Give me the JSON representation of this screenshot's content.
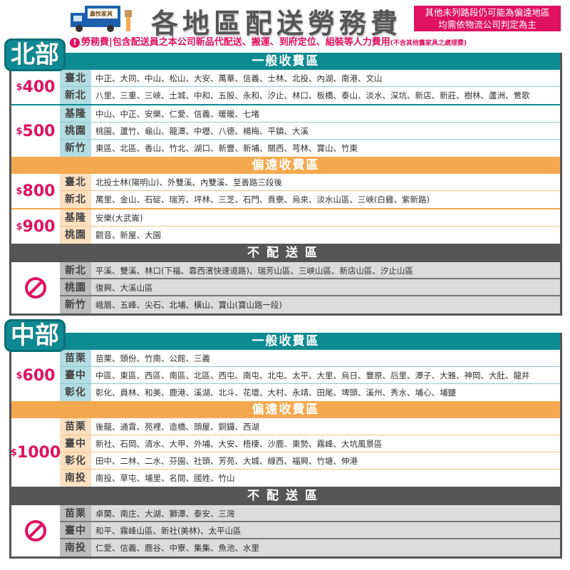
{
  "header": {
    "logo_text": "鑫悅家具",
    "title": "各地區配送勞務費",
    "note_line1": "其他未列路段仍可能為偏遠地區",
    "note_line2": "均需依物流公司判定為主",
    "subtitle": "勞務費|包含配送員之本公司新品代配送、搬運、到府定位、組裝等人力費用",
    "subtitle_small": "(不含其他舊家具之處理費)"
  },
  "colors": {
    "accent": "#e0115f",
    "teal": "#0e8a93",
    "orange": "#f5a94f",
    "dark": "#555555"
  },
  "sections": [
    {
      "name": "北部",
      "bands": [
        {
          "title": "一般收費區",
          "style": "teal",
          "groups": [
            {
              "price": "400",
              "rows": [
                {
                  "region": "臺北",
                  "areas": "中正、大同、中山、松山、大安、萬華、信義、士林、北投、內湖、南港、文山"
                },
                {
                  "region": "新北",
                  "areas": "八里、三重、三峽、土城、中和、五股、永和、汐止、林口、板橋、泰山、淡水、深坑、新店、新莊、樹林、蘆洲、鶯歌"
                }
              ]
            },
            {
              "price": "500",
              "rows": [
                {
                  "region": "基隆",
                  "areas": "中山、中正、安樂、仁愛、信義、暖暖、七堵"
                },
                {
                  "region": "桃園",
                  "areas": "桃園、蘆竹、龜山、龍潭、中壢、八德、楊梅、平鎮、大溪"
                },
                {
                  "region": "新竹",
                  "areas": "東區、北區、香山、竹北、湖口、新豐、新埔、關西、芎林、寶山、竹東"
                }
              ]
            }
          ]
        },
        {
          "title": "偏遠收費區",
          "style": "orange",
          "groups": [
            {
              "price": "800",
              "rows": [
                {
                  "region": "臺北",
                  "areas": "北投士林(陽明山)、外雙溪、內雙溪、至善路三段後"
                },
                {
                  "region": "新北",
                  "areas": "萬里、金山、石碇、瑞芳、坪林、三芝、石門、貢寮、烏來、淡水山區、三峽(白雞、紫新路)"
                }
              ]
            },
            {
              "price": "900",
              "rows": [
                {
                  "region": "基隆",
                  "areas": "安樂(大武崙)"
                },
                {
                  "region": "桃園",
                  "areas": "觀音、新屋、大園"
                }
              ]
            }
          ]
        },
        {
          "title": "不配送區",
          "style": "dark",
          "groups": [
            {
              "price": null,
              "rows": [
                {
                  "region": "新北",
                  "areas": "平溪、雙溪、林口(下福、靠西濱快速道路)、瑞芳山區、三峽山區、新店山區、汐止山區"
                },
                {
                  "region": "桃園",
                  "areas": "復興、大溪山區"
                },
                {
                  "region": "新竹",
                  "areas": "峨眉、五峰、尖石、北埔、橫山、寶山(寶山路一段)"
                }
              ]
            }
          ]
        }
      ]
    },
    {
      "name": "中部",
      "bands": [
        {
          "title": "一般收費區",
          "style": "teal",
          "groups": [
            {
              "price": "600",
              "rows": [
                {
                  "region": "苗栗",
                  "areas": "苗栗、頭份、竹南、公館、三義"
                },
                {
                  "region": "臺中",
                  "areas": "中區、東區、西區、南區、北區、西屯、南屯、北屯、太平、大里、烏日、豐原、后里、潭子、大雅、神岡、大肚、龍井"
                },
                {
                  "region": "彰化",
                  "areas": "彰化、員林、和美、鹿港、溪湖、北斗、花壇、大村、永靖、田尾、埤頭、溪州、秀水、埔心、埔鹽"
                }
              ]
            }
          ]
        },
        {
          "title": "偏遠收費區",
          "style": "orange",
          "groups": [
            {
              "price": "1000",
              "rows": [
                {
                  "region": "苗栗",
                  "areas": "後龍、通霄、苑裡、造橋、頭屋、銅鑼、西湖"
                },
                {
                  "region": "臺中",
                  "areas": "新社、石岡、清水、大甲、外埔、大安、梧棲、沙鹿、東勢、霧峰、大坑風景區"
                },
                {
                  "region": "彰化",
                  "areas": "田中、二林、二水、芬園、社頭、芳苑、大城、線西、福興、竹塘、伸港"
                },
                {
                  "region": "南投",
                  "areas": "南投、草屯、埔里、名間、國姓、竹山"
                }
              ]
            }
          ]
        },
        {
          "title": "不配送區",
          "style": "dark",
          "groups": [
            {
              "price": null,
              "rows": [
                {
                  "region": "苗栗",
                  "areas": "卓蘭、南庄、大湖、獅潭、泰安、三灣"
                },
                {
                  "region": "臺中",
                  "areas": "和平、霧峰山區、新社(美林)、太平山區"
                },
                {
                  "region": "南投",
                  "areas": "仁愛、信義、鹿谷、中寮、集集、魚池、水里"
                }
              ]
            }
          ]
        }
      ]
    }
  ]
}
